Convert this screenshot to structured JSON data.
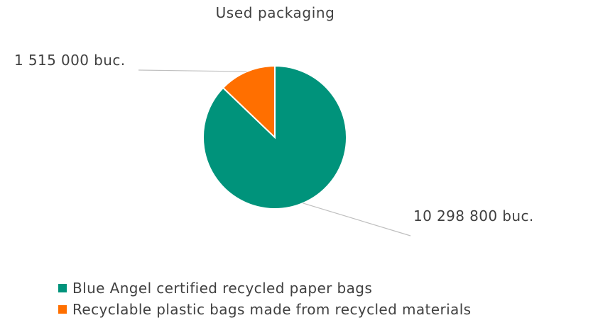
{
  "chart_data": {
    "type": "pie",
    "title": "Used packaging",
    "slices": [
      {
        "label": "Blue Angel certified recycled paper bags",
        "value": 10298800,
        "data_label": "10 298 800 buc.",
        "color": "#00937B"
      },
      {
        "label": "Recyclable plastic bags made from recycled materials",
        "value": 1515000,
        "data_label": "1 515 000 buc.",
        "color": "#FF6F00"
      }
    ],
    "legend_position": "bottom"
  }
}
